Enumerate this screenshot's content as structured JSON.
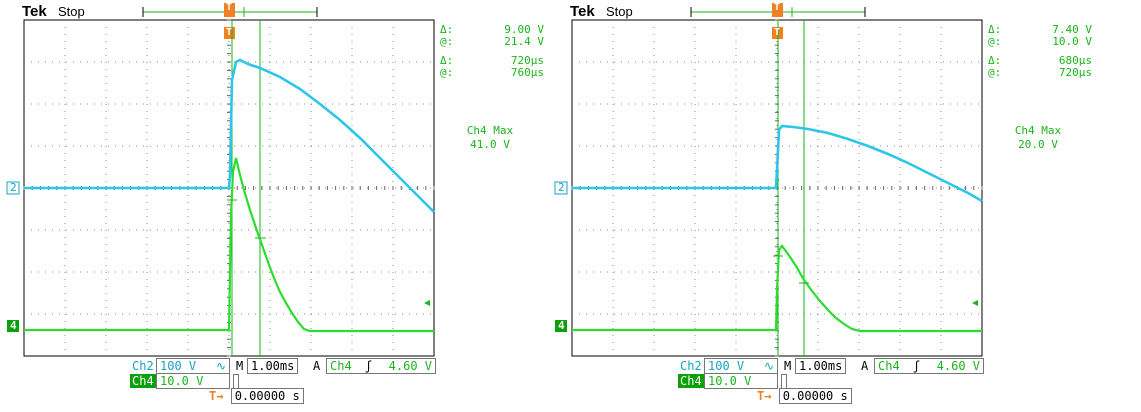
{
  "colors": {
    "ch2": "#16a3c4",
    "ch4": "#1ab51a",
    "trigger": "#f08020",
    "grid": "#999999"
  },
  "scopes": [
    {
      "brand": "Tek",
      "state": "Stop",
      "readouts": {
        "volt_delta_label": "Δ:",
        "volt_delta": "9.00 V",
        "volt_at_label": "@:",
        "volt_at": "21.4 V",
        "time_delta_label": "Δ:",
        "time_delta": "720μs",
        "time_at_label": "@:",
        "time_at": "760μs",
        "meas_label": "Ch4 Max",
        "meas_value": "41.0 V"
      },
      "bottom": {
        "ch2_label": "Ch2",
        "ch2_scale": "100 V",
        "ch2_coupling": "∿",
        "ch4_label": "Ch4",
        "ch4_scale": "10.0 V",
        "m_label": "M",
        "time_scale": "1.00ms",
        "trig_mode": "A",
        "trig_src": "Ch4",
        "trig_slope": "ʃ",
        "trig_level": "4.60 V",
        "trig_pos_icon": "T",
        "trig_pos": "0.00000 s"
      },
      "markers": {
        "ch2": "2",
        "ch4": "4",
        "trigger": "T"
      }
    },
    {
      "brand": "Tek",
      "state": "Stop",
      "readouts": {
        "volt_delta_label": "Δ:",
        "volt_delta": "7.40 V",
        "volt_at_label": "@:",
        "volt_at": "10.0 V",
        "time_delta_label": "Δ:",
        "time_delta": "680μs",
        "time_at_label": "@:",
        "time_at": "720μs",
        "meas_label": "Ch4 Max",
        "meas_value": "20.0 V"
      },
      "bottom": {
        "ch2_label": "Ch2",
        "ch2_scale": "100 V",
        "ch2_coupling": "∿",
        "ch4_label": "Ch4",
        "ch4_scale": "10.0 V",
        "m_label": "M",
        "time_scale": "1.00ms",
        "trig_mode": "A",
        "trig_src": "Ch4",
        "trig_slope": "ʃ",
        "trig_level": "4.60 V",
        "trig_pos_icon": "T",
        "trig_pos": "0.00000 s"
      },
      "markers": {
        "ch2": "2",
        "ch4": "4",
        "trigger": "T"
      }
    }
  ]
}
